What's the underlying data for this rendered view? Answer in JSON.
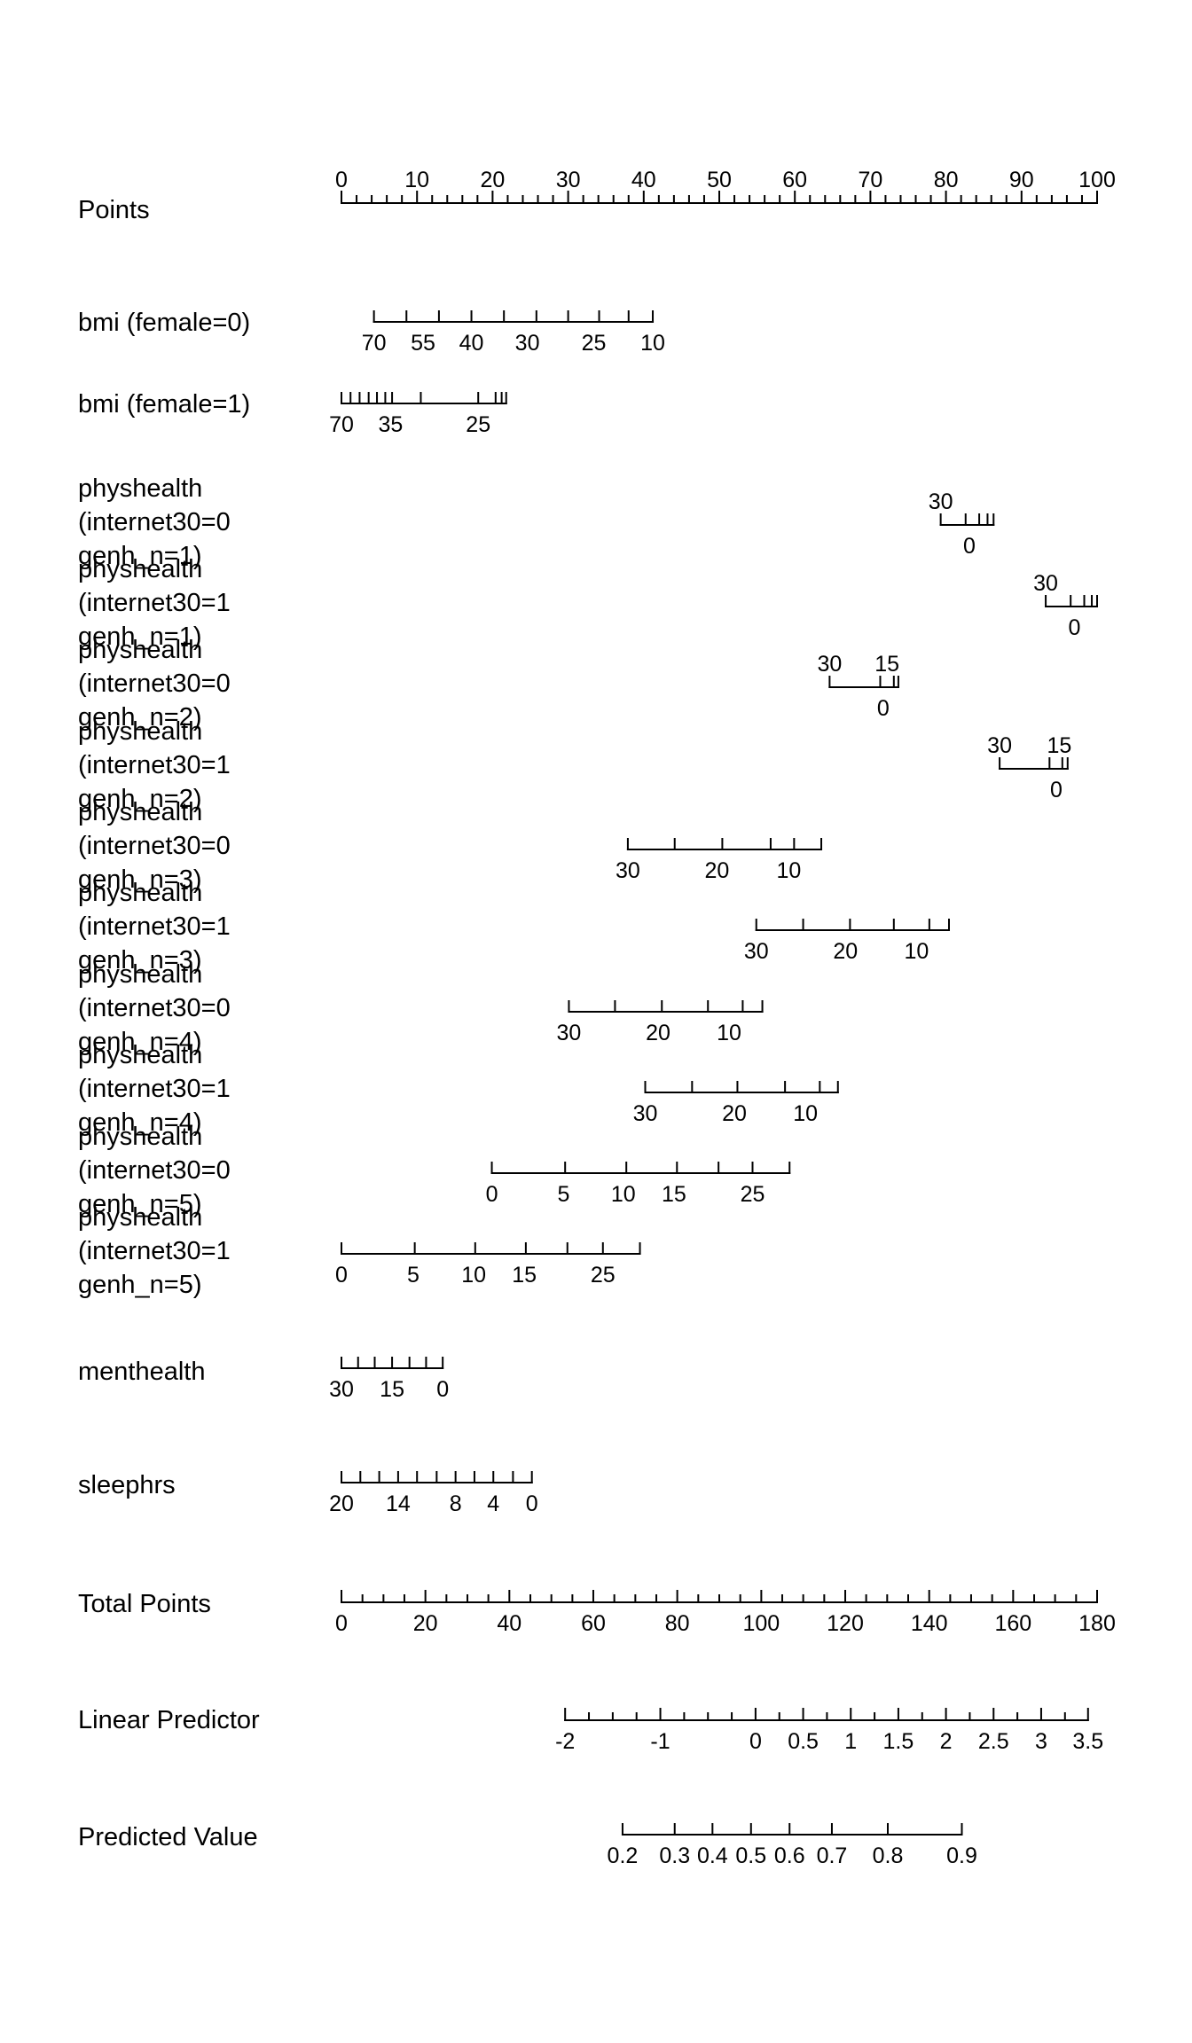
{
  "chart_data": {
    "type": "nomogram",
    "rows": [
      {
        "label": [
          "Points"
        ],
        "pos": [
          0,
          100
        ],
        "labels_above": true,
        "ticks": [
          0,
          2,
          4,
          6,
          8,
          10,
          12,
          14,
          16,
          18,
          20,
          22,
          24,
          26,
          28,
          30,
          32,
          34,
          36,
          38,
          40,
          42,
          44,
          46,
          48,
          50,
          52,
          54,
          56,
          58,
          60,
          62,
          64,
          66,
          68,
          70,
          72,
          74,
          76,
          78,
          80,
          82,
          84,
          86,
          88,
          90,
          92,
          94,
          96,
          98,
          100
        ],
        "major": [
          0,
          10,
          20,
          30,
          40,
          50,
          60,
          70,
          80,
          90,
          100
        ],
        "tick_labels": [
          {
            "v": 0,
            "t": "0"
          },
          {
            "v": 10,
            "t": "10"
          },
          {
            "v": 20,
            "t": "20"
          },
          {
            "v": 30,
            "t": "30"
          },
          {
            "v": 40,
            "t": "40"
          },
          {
            "v": 50,
            "t": "50"
          },
          {
            "v": 60,
            "t": "60"
          },
          {
            "v": 70,
            "t": "70"
          },
          {
            "v": 80,
            "t": "80"
          },
          {
            "v": 90,
            "t": "90"
          },
          {
            "v": 100,
            "t": "100"
          }
        ]
      },
      {
        "label": [
          "bmi (female=0)"
        ],
        "pos": [
          4.3,
          41.2
        ],
        "ticks": [
          4.3,
          8.6,
          12.9,
          17.2,
          21.5,
          25.8,
          30,
          34.1,
          38,
          41.2
        ],
        "tick_labels": [
          {
            "v": 4.3,
            "t": "70"
          },
          {
            "v": 10.8,
            "t": "55"
          },
          {
            "v": 17.2,
            "t": "40"
          },
          {
            "v": 24.6,
            "t": "30"
          },
          {
            "v": 33.4,
            "t": "25"
          },
          {
            "v": 41.2,
            "t": "10"
          }
        ]
      },
      {
        "label": [
          "bmi (female=1)"
        ],
        "pos": [
          0,
          21.8
        ],
        "ticks": [
          0,
          1.2,
          2.4,
          3.6,
          4.7,
          5.8,
          6.7,
          10.5,
          18.1,
          20.4,
          21.2,
          21.8
        ],
        "tick_labels": [
          {
            "v": 0,
            "t": "70"
          },
          {
            "v": 6.5,
            "t": "35"
          },
          {
            "v": 18.1,
            "t": "25"
          }
        ]
      },
      {
        "label": [
          "physhealth",
          "(internet30=0",
          "genh_n=1)"
        ],
        "pos": [
          79.3,
          86.3
        ],
        "ticks": [
          79.3,
          82.6,
          84.4,
          85.5,
          86.3
        ],
        "tick_labels": [
          {
            "v": 79.3,
            "t": "30",
            "above": true
          },
          {
            "v": 83.1,
            "t": "0"
          }
        ]
      },
      {
        "label": [
          "physhealth",
          "(internet30=1",
          "genh_n=1)"
        ],
        "pos": [
          93.2,
          100
        ],
        "ticks": [
          93.2,
          96.5,
          98.3,
          99.3,
          100
        ],
        "tick_labels": [
          {
            "v": 93.2,
            "t": "30",
            "above": true
          },
          {
            "v": 97,
            "t": "0"
          }
        ]
      },
      {
        "label": [
          "physhealth",
          "(internet30=0",
          "genh_n=2)"
        ],
        "pos": [
          64.6,
          73.7
        ],
        "ticks": [
          64.6,
          71.3,
          73.1,
          73.7
        ],
        "tick_labels": [
          {
            "v": 64.6,
            "t": "30",
            "above": true
          },
          {
            "v": 72.2,
            "t": "15",
            "above": true
          },
          {
            "v": 71.7,
            "t": "0"
          }
        ]
      },
      {
        "label": [
          "physhealth",
          "(internet30=1",
          "genh_n=2)"
        ],
        "pos": [
          87.1,
          96.1
        ],
        "ticks": [
          87.1,
          93.7,
          95.4,
          96.1
        ],
        "tick_labels": [
          {
            "v": 87.1,
            "t": "30",
            "above": true
          },
          {
            "v": 95,
            "t": "15",
            "above": true
          },
          {
            "v": 94.6,
            "t": "0"
          }
        ]
      },
      {
        "label": [
          "physhealth",
          "(internet30=0",
          "genh_n=3)"
        ],
        "pos": [
          37.9,
          63.5
        ],
        "ticks": [
          37.9,
          44.1,
          50.4,
          56.8,
          59.9,
          63.5
        ],
        "tick_labels": [
          {
            "v": 37.9,
            "t": "30"
          },
          {
            "v": 49.7,
            "t": "20"
          },
          {
            "v": 59.2,
            "t": "10"
          }
        ]
      },
      {
        "label": [
          "physhealth",
          "(internet30=1",
          "genh_n=3)"
        ],
        "pos": [
          54.9,
          80.4
        ],
        "ticks": [
          54.9,
          61.1,
          67.3,
          73.1,
          77.8,
          80.4
        ],
        "tick_labels": [
          {
            "v": 54.9,
            "t": "30"
          },
          {
            "v": 66.7,
            "t": "20"
          },
          {
            "v": 76.1,
            "t": "10"
          }
        ]
      },
      {
        "label": [
          "physhealth",
          "(internet30=0",
          "genh_n=4)"
        ],
        "pos": [
          30.1,
          55.7
        ],
        "ticks": [
          30.1,
          36.2,
          42.4,
          48.5,
          53.1,
          55.7
        ],
        "tick_labels": [
          {
            "v": 30.1,
            "t": "30"
          },
          {
            "v": 41.9,
            "t": "20"
          },
          {
            "v": 51.3,
            "t": "10"
          }
        ]
      },
      {
        "label": [
          "physhealth",
          "(internet30=1",
          "genh_n=4)"
        ],
        "pos": [
          40.2,
          65.7
        ],
        "ticks": [
          40.2,
          46.4,
          52.4,
          58.7,
          63.3,
          65.7
        ],
        "tick_labels": [
          {
            "v": 40.2,
            "t": "30"
          },
          {
            "v": 52,
            "t": "20"
          },
          {
            "v": 61.4,
            "t": "10"
          }
        ]
      },
      {
        "label": [
          "physhealth",
          "(internet30=0",
          "genh_n=5)"
        ],
        "pos": [
          19.9,
          59.3
        ],
        "ticks": [
          19.9,
          29.6,
          37.7,
          44.4,
          49.9,
          54.4,
          59.3
        ],
        "tick_labels": [
          {
            "v": 19.9,
            "t": "0"
          },
          {
            "v": 29.4,
            "t": "5"
          },
          {
            "v": 37.3,
            "t": "10"
          },
          {
            "v": 44,
            "t": "15"
          },
          {
            "v": 54.4,
            "t": "25"
          }
        ]
      },
      {
        "label": [
          "physhealth",
          "(internet30=1",
          "genh_n=5)"
        ],
        "pos": [
          0,
          39.5
        ],
        "ticks": [
          0,
          9.7,
          17.7,
          24.4,
          29.9,
          34.6,
          39.5
        ],
        "tick_labels": [
          {
            "v": 0,
            "t": "0"
          },
          {
            "v": 9.5,
            "t": "5"
          },
          {
            "v": 17.5,
            "t": "10"
          },
          {
            "v": 24.2,
            "t": "15"
          },
          {
            "v": 34.6,
            "t": "25"
          }
        ]
      },
      {
        "label": [
          "menthealth"
        ],
        "pos": [
          0,
          13.4
        ],
        "ticks": [
          0,
          2.2,
          4.4,
          6.7,
          9,
          11.2,
          13.4
        ],
        "tick_labels": [
          {
            "v": 0,
            "t": "30"
          },
          {
            "v": 6.7,
            "t": "15"
          },
          {
            "v": 13.4,
            "t": "0"
          }
        ]
      },
      {
        "label": [
          "sleephrs"
        ],
        "pos": [
          0,
          25.2
        ],
        "ticks": [
          0,
          2.5,
          5,
          7.5,
          10,
          12.6,
          15.1,
          17.6,
          20.1,
          22.7,
          25.2
        ],
        "tick_labels": [
          {
            "v": 0,
            "t": "20"
          },
          {
            "v": 7.5,
            "t": "14"
          },
          {
            "v": 15.1,
            "t": "8"
          },
          {
            "v": 20.1,
            "t": "4"
          },
          {
            "v": 25.2,
            "t": "0"
          }
        ]
      },
      {
        "label": [
          "Total Points"
        ],
        "pos": [
          0,
          100
        ],
        "ticks": [
          0,
          2.78,
          5.56,
          8.33,
          11.11,
          13.89,
          16.67,
          19.44,
          22.22,
          25,
          27.78,
          30.56,
          33.33,
          36.11,
          38.89,
          41.67,
          44.44,
          47.22,
          50,
          52.78,
          55.56,
          58.33,
          61.11,
          63.89,
          66.67,
          69.44,
          72.22,
          75,
          77.78,
          80.56,
          83.33,
          86.11,
          88.89,
          91.67,
          94.44,
          97.22,
          100
        ],
        "major": [
          0,
          11.11,
          22.22,
          33.33,
          44.44,
          55.56,
          66.67,
          77.78,
          88.89,
          100
        ],
        "tick_labels": [
          {
            "v": 0,
            "t": "0"
          },
          {
            "v": 11.11,
            "t": "20"
          },
          {
            "v": 22.22,
            "t": "40"
          },
          {
            "v": 33.33,
            "t": "60"
          },
          {
            "v": 44.44,
            "t": "80"
          },
          {
            "v": 55.56,
            "t": "100"
          },
          {
            "v": 66.67,
            "t": "120"
          },
          {
            "v": 77.78,
            "t": "140"
          },
          {
            "v": 88.89,
            "t": "160"
          },
          {
            "v": 100,
            "t": "180"
          }
        ]
      },
      {
        "label": [
          "Linear Predictor"
        ],
        "pos": [
          29.6,
          98.8
        ],
        "ticks": [
          29.6,
          32.75,
          35.9,
          39.05,
          42.2,
          45.35,
          48.5,
          51.65,
          54.8,
          57.95,
          61.1,
          64.25,
          67.4,
          70.55,
          73.7,
          76.85,
          80,
          83.15,
          86.3,
          89.45,
          92.6,
          95.75,
          98.8
        ],
        "major": [
          29.6,
          42.2,
          54.8,
          61.1,
          67.4,
          73.7,
          80,
          86.3,
          92.6,
          98.8
        ],
        "tick_labels": [
          {
            "v": 29.6,
            "t": "-2"
          },
          {
            "v": 42.2,
            "t": "-1"
          },
          {
            "v": 54.8,
            "t": "0"
          },
          {
            "v": 61.1,
            "t": "0.5"
          },
          {
            "v": 67.4,
            "t": "1"
          },
          {
            "v": 73.7,
            "t": "1.5"
          },
          {
            "v": 80,
            "t": "2"
          },
          {
            "v": 86.3,
            "t": "2.5"
          },
          {
            "v": 92.6,
            "t": "3"
          },
          {
            "v": 98.8,
            "t": "3.5"
          }
        ]
      },
      {
        "label": [
          "Predicted Value"
        ],
        "pos": [
          37.2,
          82.1
        ],
        "ticks": [
          37.2,
          44.1,
          49.1,
          54.2,
          59.3,
          64.9,
          72.3,
          82.1
        ],
        "tick_labels": [
          {
            "v": 37.2,
            "t": "0.2"
          },
          {
            "v": 44.1,
            "t": "0.3"
          },
          {
            "v": 49.1,
            "t": "0.4"
          },
          {
            "v": 54.2,
            "t": "0.5"
          },
          {
            "v": 59.3,
            "t": "0.6"
          },
          {
            "v": 64.9,
            "t": "0.7"
          },
          {
            "v": 72.3,
            "t": "0.8"
          },
          {
            "v": 82.1,
            "t": "0.9"
          }
        ]
      }
    ]
  }
}
